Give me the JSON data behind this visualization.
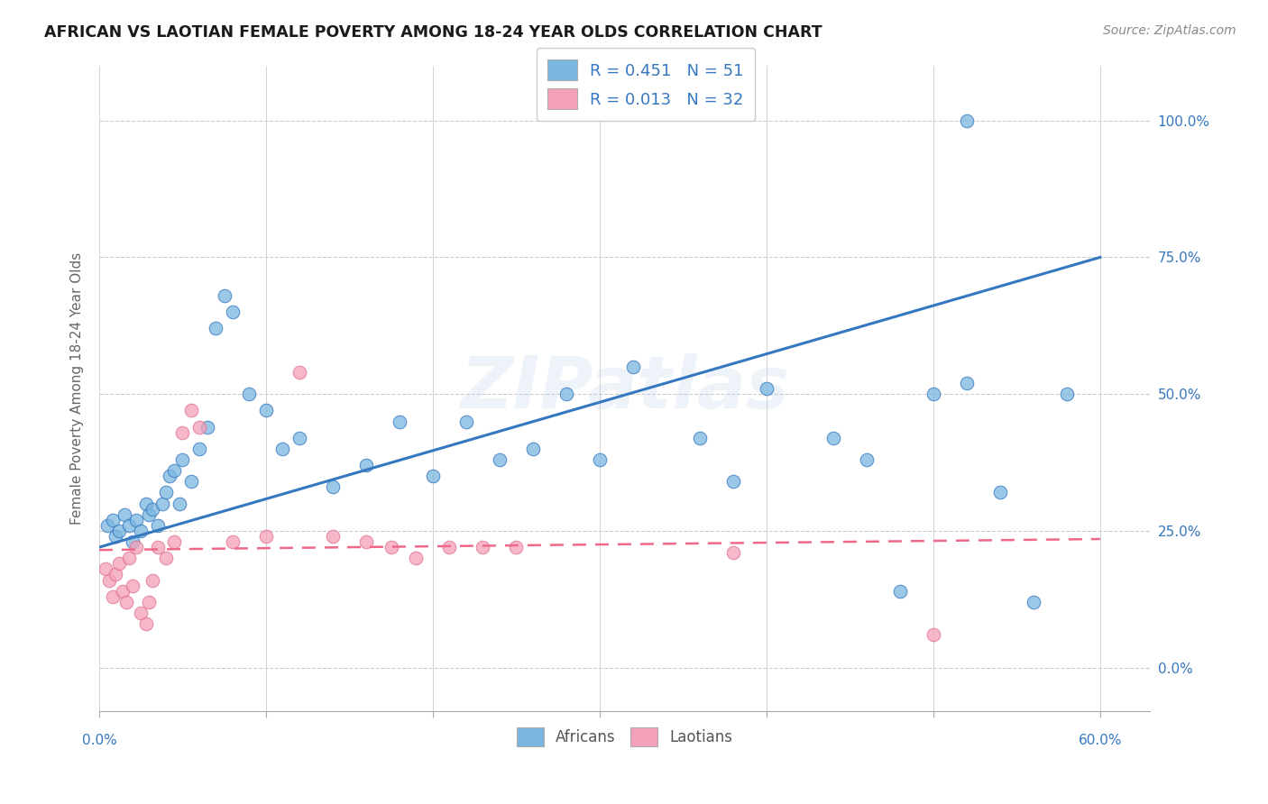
{
  "title": "AFRICAN VS LAOTIAN FEMALE POVERTY AMONG 18-24 YEAR OLDS CORRELATION CHART",
  "source": "Source: ZipAtlas.com",
  "ylabel": "Female Poverty Among 18-24 Year Olds",
  "ytick_labels": [
    "0.0%",
    "25.0%",
    "50.0%",
    "75.0%",
    "100.0%"
  ],
  "ytick_values": [
    0.0,
    0.25,
    0.5,
    0.75,
    1.0
  ],
  "xlim": [
    0.0,
    0.63
  ],
  "ylim": [
    -0.08,
    1.1
  ],
  "african_color": "#7ab6e0",
  "laotian_color": "#f4a0b8",
  "african_line_color": "#3578c0",
  "laotian_line_color": "#f06888",
  "watermark": "ZIPatlas",
  "african_color_dark": "#3578c0",
  "laotian_color_dark": "#e07090",
  "background_color": "#ffffff",
  "grid_color": "#cccccc",
  "african_x": [
    0.005,
    0.008,
    0.01,
    0.012,
    0.015,
    0.018,
    0.02,
    0.022,
    0.025,
    0.028,
    0.03,
    0.032,
    0.035,
    0.038,
    0.04,
    0.042,
    0.045,
    0.048,
    0.05,
    0.055,
    0.06,
    0.065,
    0.07,
    0.075,
    0.08,
    0.09,
    0.1,
    0.11,
    0.12,
    0.14,
    0.16,
    0.18,
    0.2,
    0.22,
    0.24,
    0.26,
    0.28,
    0.3,
    0.32,
    0.36,
    0.38,
    0.4,
    0.44,
    0.46,
    0.48,
    0.5,
    0.52,
    0.54,
    0.56,
    0.52,
    0.58
  ],
  "african_y": [
    0.26,
    0.27,
    0.24,
    0.25,
    0.28,
    0.26,
    0.23,
    0.27,
    0.25,
    0.3,
    0.28,
    0.29,
    0.26,
    0.3,
    0.32,
    0.35,
    0.36,
    0.3,
    0.38,
    0.34,
    0.4,
    0.44,
    0.62,
    0.68,
    0.65,
    0.5,
    0.47,
    0.4,
    0.42,
    0.33,
    0.37,
    0.45,
    0.35,
    0.45,
    0.38,
    0.4,
    0.5,
    0.38,
    0.55,
    0.42,
    0.34,
    0.51,
    0.42,
    0.38,
    0.14,
    0.5,
    0.52,
    0.32,
    0.12,
    1.0,
    0.5
  ],
  "laotian_x": [
    0.004,
    0.006,
    0.008,
    0.01,
    0.012,
    0.014,
    0.016,
    0.018,
    0.02,
    0.022,
    0.025,
    0.028,
    0.03,
    0.032,
    0.035,
    0.04,
    0.045,
    0.05,
    0.055,
    0.06,
    0.08,
    0.1,
    0.12,
    0.14,
    0.16,
    0.175,
    0.19,
    0.21,
    0.23,
    0.25,
    0.38,
    0.5
  ],
  "laotian_y": [
    0.18,
    0.16,
    0.13,
    0.17,
    0.19,
    0.14,
    0.12,
    0.2,
    0.15,
    0.22,
    0.1,
    0.08,
    0.12,
    0.16,
    0.22,
    0.2,
    0.23,
    0.43,
    0.47,
    0.44,
    0.23,
    0.24,
    0.54,
    0.24,
    0.23,
    0.22,
    0.2,
    0.22,
    0.22,
    0.22,
    0.21,
    0.06
  ],
  "african_line_x0": 0.0,
  "african_line_y0": 0.22,
  "african_line_x1": 0.6,
  "african_line_y1": 0.75,
  "laotian_line_x0": 0.0,
  "laotian_line_y0": 0.215,
  "laotian_line_x1": 0.6,
  "laotian_line_y1": 0.235
}
